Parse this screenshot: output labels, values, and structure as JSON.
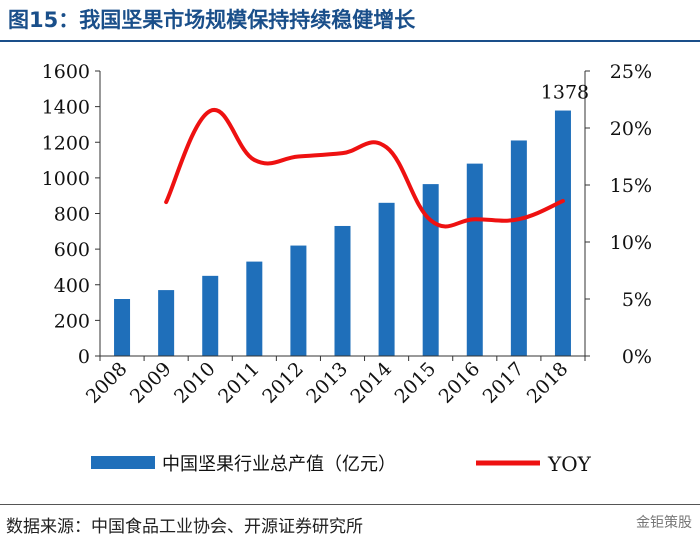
{
  "header": {
    "title": "图15：我国坚果市场规模保持持续稳健增长"
  },
  "footer": {
    "source": "数据来源：中国食品工业协会、开源证券研究所",
    "watermark": "金钜策股"
  },
  "chart_data": {
    "type": "bar",
    "categories": [
      "2008",
      "2009",
      "2010",
      "2011",
      "2012",
      "2013",
      "2014",
      "2015",
      "2016",
      "2017",
      "2018"
    ],
    "series": [
      {
        "name": "中国坚果行业总产值（亿元）",
        "type": "bar",
        "axis": "left",
        "color": "#1f6fba",
        "values": [
          320,
          370,
          450,
          530,
          620,
          730,
          860,
          965,
          1080,
          1210,
          1378
        ]
      },
      {
        "name": "YOY",
        "type": "line",
        "axis": "right",
        "color": "#ee1111",
        "values": [
          null,
          13.5,
          21.5,
          17.2,
          17.5,
          17.8,
          18.3,
          11.9,
          12.0,
          12.0,
          13.6
        ]
      }
    ],
    "data_labels": [
      {
        "category": "2018",
        "text": "1378"
      }
    ],
    "y_left": {
      "ylim": [
        0,
        1600
      ],
      "ticks": [
        "0",
        "200",
        "400",
        "600",
        "800",
        "1000",
        "1200",
        "1400",
        "1600"
      ]
    },
    "y_right": {
      "ylim": [
        0,
        25
      ],
      "ticks": [
        "0%",
        "5%",
        "10%",
        "15%",
        "20%",
        "25%"
      ]
    },
    "grid": false,
    "legend": {
      "placement": "bottom"
    }
  }
}
